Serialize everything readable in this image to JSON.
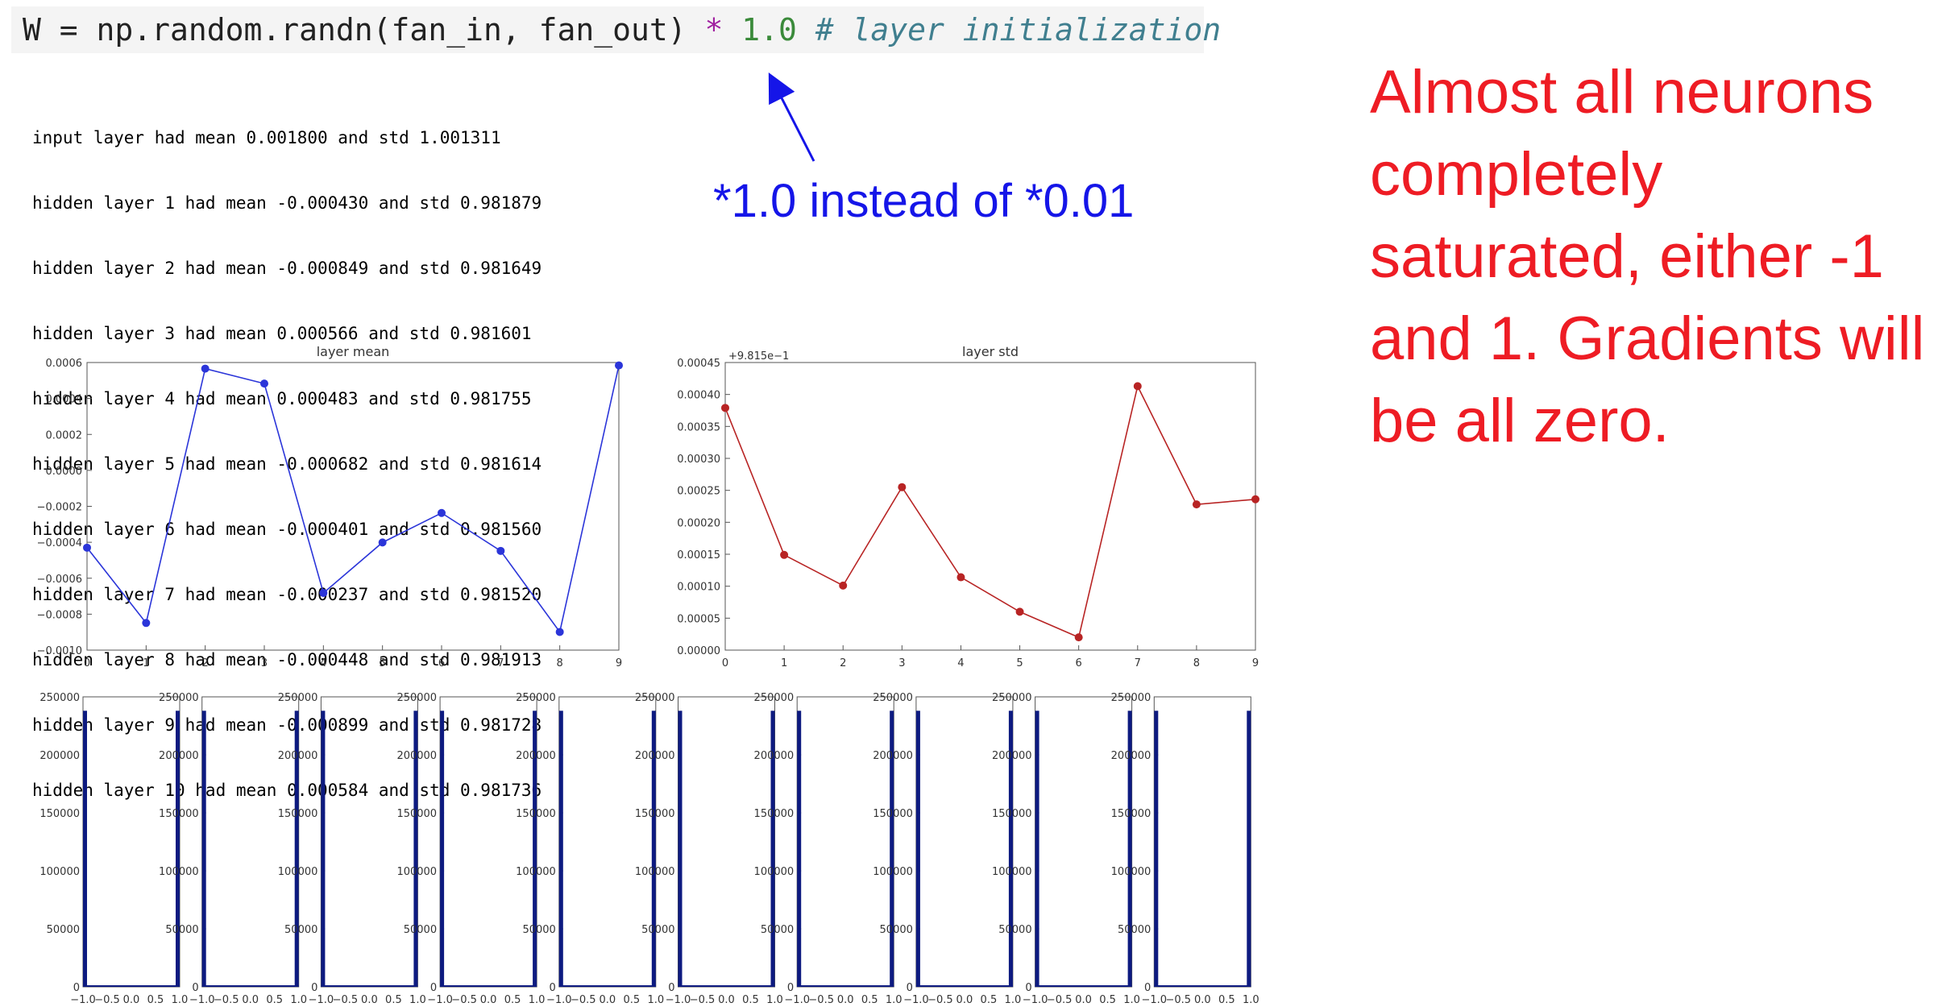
{
  "code": {
    "prefix": "W = np.random.randn(fan_in, fan_out) ",
    "op": "*",
    "num": " 1.0",
    "comment": " # layer initialization"
  },
  "stats": [
    "input layer had mean 0.001800 and std 1.001311",
    "hidden layer 1 had mean -0.000430 and std 0.981879",
    "hidden layer 2 had mean -0.000849 and std 0.981649",
    "hidden layer 3 had mean 0.000566 and std 0.981601",
    "hidden layer 4 had mean 0.000483 and std 0.981755",
    "hidden layer 5 had mean -0.000682 and std 0.981614",
    "hidden layer 6 had mean -0.000401 and std 0.981560",
    "hidden layer 7 had mean -0.000237 and std 0.981520",
    "hidden layer 8 had mean -0.000448 and std 0.981913",
    "hidden layer 9 had mean -0.000899 and std 0.981728",
    "hidden layer 10 had mean 0.000584 and std 0.981736"
  ],
  "annotation": "*1.0 instead of *0.01",
  "callout": "Almost all neurons completely saturated, either -1 and 1. Gradients will be all zero.",
  "colors": {
    "annotation": "#1515e8",
    "callout": "#ee1c24",
    "mean_line": "#2b35d9",
    "std_line": "#b82424",
    "hist_bar": "#0d1a80"
  },
  "chart_data": [
    {
      "type": "line",
      "title": "layer mean",
      "x": [
        0,
        1,
        2,
        3,
        4,
        5,
        6,
        7,
        8,
        9
      ],
      "values": [
        -0.00043,
        -0.000849,
        0.000566,
        0.000483,
        -0.000682,
        -0.000401,
        -0.000237,
        -0.000448,
        -0.000899,
        0.000584
      ],
      "xlim": [
        0,
        9
      ],
      "ylim": [
        -0.001,
        0.0006
      ],
      "xticks": [
        "0",
        "1",
        "2",
        "3",
        "4",
        "5",
        "6",
        "7",
        "8",
        "9"
      ],
      "yticks": [
        "0.0006",
        "0.0004",
        "0.0002",
        "0.0000",
        "−0.0002",
        "−0.0004",
        "−0.0006",
        "−0.0008",
        "−0.0010"
      ],
      "grid": false
    },
    {
      "type": "line",
      "title": "layer std",
      "offset_label": "+9.815e−1",
      "x": [
        0,
        1,
        2,
        3,
        4,
        5,
        6,
        7,
        8,
        9
      ],
      "values": [
        0.000379,
        0.000149,
        0.000101,
        0.000255,
        0.000114,
        6e-05,
        2e-05,
        0.000413,
        0.000228,
        0.000236
      ],
      "xlim": [
        0,
        9
      ],
      "ylim": [
        0,
        0.00045
      ],
      "xticks": [
        "0",
        "1",
        "2",
        "3",
        "4",
        "5",
        "6",
        "7",
        "8",
        "9"
      ],
      "yticks": [
        "0.00045",
        "0.00040",
        "0.00035",
        "0.00030",
        "0.00025",
        "0.00020",
        "0.00015",
        "0.00010",
        "0.00005",
        "0.00000"
      ],
      "grid": false
    },
    {
      "type": "bar",
      "description_kind": "histograms",
      "count": 10,
      "x_range": [
        -1,
        1
      ],
      "ylim": [
        0,
        250000
      ],
      "yticks": [
        "250000",
        "200000",
        "150000",
        "100000",
        "50000",
        "0"
      ],
      "xticks": [
        "−1.0",
        "−0.5",
        "0.0",
        "0.5",
        "1.0"
      ],
      "edge_bins": {
        "left": 238000,
        "right": 238000
      }
    }
  ]
}
